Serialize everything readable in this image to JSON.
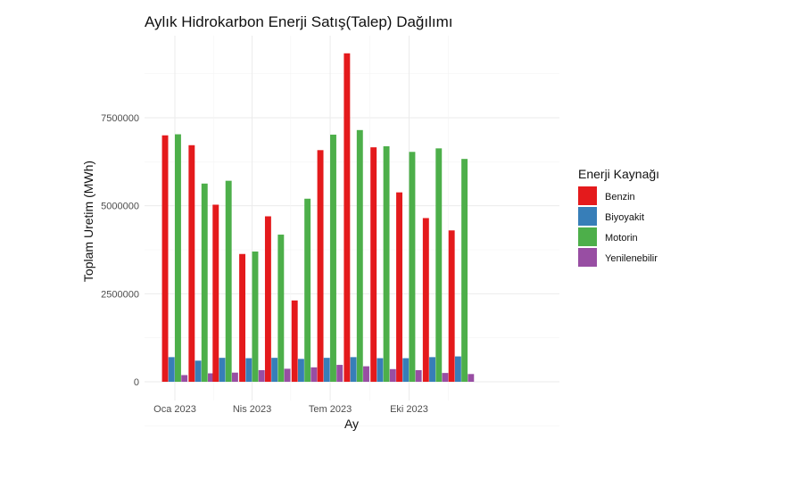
{
  "chart_data": {
    "type": "bar",
    "title": "Aylık Hidrokarbon Enerji Satış(Talep) Dağılımı",
    "xlabel": "Ay",
    "ylabel": "Toplam Uretim (MWh)",
    "x_tick_labels": [
      "Oca 2023",
      "Nis 2023",
      "Tem 2023",
      "Eki 2023"
    ],
    "y_ticks": [
      0,
      2500000,
      5000000,
      7500000
    ],
    "y_tick_labels": [
      "0",
      "2500000",
      "5000000",
      "7500000"
    ],
    "ylim": [
      0,
      9500000
    ],
    "grid": true,
    "legend_position": "right",
    "legend_title": "Enerji Kaynağı",
    "months": [
      "2023-01",
      "2023-02",
      "2023-03",
      "2023-04",
      "2023-05",
      "2023-06",
      "2023-07",
      "2023-08",
      "2023-09",
      "2023-10",
      "2023-11",
      "2023-12"
    ],
    "series": [
      {
        "name": "Benzin",
        "color": "#E41A1C",
        "values": [
          7000000,
          6720000,
          5030000,
          3630000,
          4700000,
          2310000,
          6580000,
          9330000,
          6660000,
          5380000,
          4650000,
          4300000
        ]
      },
      {
        "name": "Biyoyakit",
        "color": "#377EB8",
        "values": [
          700000,
          600000,
          680000,
          670000,
          680000,
          650000,
          680000,
          700000,
          670000,
          670000,
          700000,
          720000
        ]
      },
      {
        "name": "Motorin",
        "color": "#4DAF4A",
        "values": [
          7030000,
          5630000,
          5710000,
          3700000,
          4180000,
          5200000,
          7020000,
          7150000,
          6690000,
          6530000,
          6630000,
          6330000
        ]
      },
      {
        "name": "Yenilenebilir",
        "color": "#984EA3",
        "values": [
          190000,
          240000,
          260000,
          330000,
          370000,
          410000,
          480000,
          440000,
          360000,
          330000,
          250000,
          220000
        ]
      }
    ]
  }
}
